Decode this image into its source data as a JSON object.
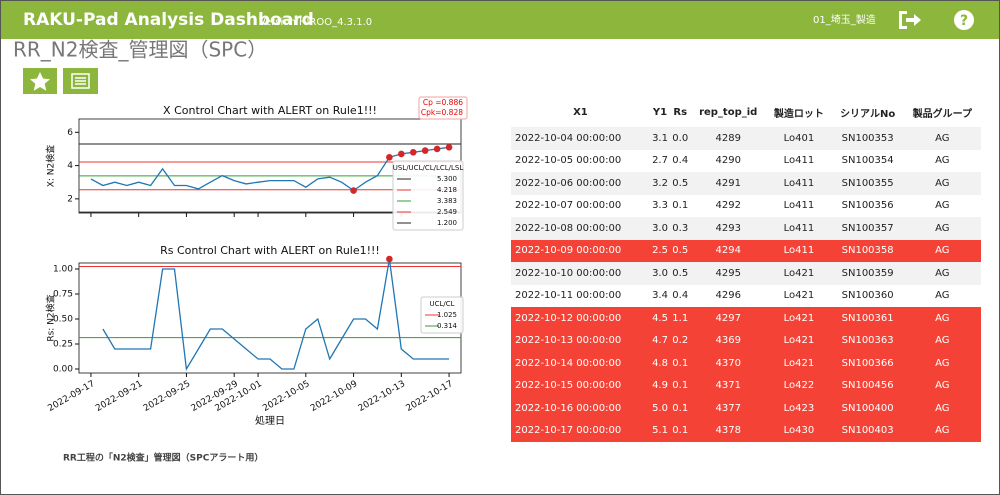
{
  "header": {
    "title": "RAKU-Pad Analysis Dashboard",
    "version": "Version HIROO_4.3.1.0",
    "site": "01_埼玉_製造"
  },
  "page_title": "RR_N2検査_管理図（SPC）",
  "caption": "RR工程の「N2検査」管理図（SPCアラート用）",
  "chart_data": [
    {
      "type": "line",
      "title": "X Control Chart with ALERT on Rule1!!!",
      "ylabel": "X: N2検査",
      "color": "#1f77b4",
      "alert_color": "#d62728",
      "x": [
        "2022-09-17",
        "2022-09-18",
        "2022-09-19",
        "2022-09-20",
        "2022-09-21",
        "2022-09-22",
        "2022-09-23",
        "2022-09-24",
        "2022-09-25",
        "2022-09-26",
        "2022-09-27",
        "2022-09-28",
        "2022-09-29",
        "2022-09-30",
        "2022-10-01",
        "2022-10-02",
        "2022-10-03",
        "2022-10-04",
        "2022-10-05",
        "2022-10-06",
        "2022-10-07",
        "2022-10-08",
        "2022-10-09",
        "2022-10-10",
        "2022-10-11",
        "2022-10-12",
        "2022-10-13",
        "2022-10-14",
        "2022-10-15",
        "2022-10-16",
        "2022-10-17"
      ],
      "values": [
        3.2,
        2.8,
        3.0,
        2.8,
        3.0,
        2.8,
        3.8,
        2.8,
        2.8,
        2.6,
        3.0,
        3.4,
        3.1,
        2.9,
        3.0,
        3.1,
        3.1,
        3.1,
        2.7,
        3.2,
        3.3,
        3.0,
        2.5,
        3.0,
        3.4,
        4.5,
        4.7,
        4.8,
        4.9,
        5.0,
        5.1
      ],
      "xlim": [
        "2022-09-16",
        "2022-10-18"
      ],
      "ylim": [
        1.15,
        6.8
      ],
      "yticks": [
        2,
        4,
        6
      ],
      "legend_title": "USL/UCL/CL/LCL/LSL",
      "limits": [
        {
          "value": 5.3,
          "label": "5.300",
          "color": "#222222"
        },
        {
          "value": 4.218,
          "label": "4.218",
          "color": "#ee3333"
        },
        {
          "value": 3.383,
          "label": "3.383",
          "color": "#2ca02c"
        },
        {
          "value": 2.549,
          "label": "2.549",
          "color": "#ee3333"
        },
        {
          "value": 1.2,
          "label": "1.200",
          "color": "#222222"
        }
      ],
      "annotations": [
        "Cp =0.886",
        "Cpk=0.828"
      ]
    },
    {
      "type": "line",
      "title": "Rs Control Chart with ALERT on Rule1!!!",
      "ylabel": "Rs: N2検査",
      "xlabel": "処理日",
      "color": "#1f77b4",
      "alert_color": "#d62728",
      "x": [
        "2022-09-17",
        "2022-09-18",
        "2022-09-19",
        "2022-09-20",
        "2022-09-21",
        "2022-09-22",
        "2022-09-23",
        "2022-09-24",
        "2022-09-25",
        "2022-09-26",
        "2022-09-27",
        "2022-09-28",
        "2022-09-29",
        "2022-09-30",
        "2022-10-01",
        "2022-10-02",
        "2022-10-03",
        "2022-10-04",
        "2022-10-05",
        "2022-10-06",
        "2022-10-07",
        "2022-10-08",
        "2022-10-09",
        "2022-10-10",
        "2022-10-11",
        "2022-10-12",
        "2022-10-13",
        "2022-10-14",
        "2022-10-15",
        "2022-10-16",
        "2022-10-17"
      ],
      "values": [
        null,
        0.4,
        0.2,
        0.2,
        0.2,
        0.2,
        1.0,
        1.0,
        0.0,
        0.2,
        0.4,
        0.4,
        0.3,
        0.2,
        0.1,
        0.1,
        0.0,
        0.0,
        0.4,
        0.5,
        0.1,
        0.3,
        0.5,
        0.5,
        0.4,
        1.1,
        0.2,
        0.1,
        0.1,
        0.1,
        0.1
      ],
      "xlim": [
        "2022-09-16",
        "2022-10-18"
      ],
      "ylim": [
        -0.04,
        1.06
      ],
      "yticks": [
        {
          "value": 0,
          "label": "0.00"
        },
        {
          "value": 0.25,
          "label": "0.25"
        },
        {
          "value": 0.5,
          "label": "0.50"
        },
        {
          "value": 0.75,
          "label": "0.75"
        },
        {
          "value": 1,
          "label": "1.00"
        }
      ],
      "xticks": [
        "2022-09-17",
        "2022-09-21",
        "2022-09-25",
        "2022-09-29",
        "2022-10-01",
        "2022-10-05",
        "2022-10-09",
        "2022-10-13",
        "2022-10-17"
      ],
      "legend_title": "UCL/CL",
      "limits": [
        {
          "value": 1.025,
          "label": "1.025",
          "color": "#ee3333"
        },
        {
          "value": 0.314,
          "label": "0.314",
          "color": "#2ca02c"
        }
      ]
    }
  ],
  "table": {
    "columns": [
      "X1",
      "Y1",
      "Rs",
      "rep_top_id",
      "製造ロット",
      "シリアルNo",
      "製品グループ"
    ],
    "rows": [
      [
        "2022-10-04 00:00:00",
        "3.1",
        "0.0",
        "4289",
        "Lo401",
        "SN100353",
        "AG"
      ],
      [
        "2022-10-05 00:00:00",
        "2.7",
        "0.4",
        "4290",
        "Lo411",
        "SN100354",
        "AG"
      ],
      [
        "2022-10-06 00:00:00",
        "3.2",
        "0.5",
        "4291",
        "Lo411",
        "SN100355",
        "AG"
      ],
      [
        "2022-10-07 00:00:00",
        "3.3",
        "0.1",
        "4292",
        "Lo411",
        "SN100356",
        "AG"
      ],
      [
        "2022-10-08 00:00:00",
        "3.0",
        "0.3",
        "4293",
        "Lo411",
        "SN100357",
        "AG"
      ],
      [
        "2022-10-09 00:00:00",
        "2.5",
        "0.5",
        "4294",
        "Lo411",
        "SN100358",
        "AG"
      ],
      [
        "2022-10-10 00:00:00",
        "3.0",
        "0.5",
        "4295",
        "Lo421",
        "SN100359",
        "AG"
      ],
      [
        "2022-10-11 00:00:00",
        "3.4",
        "0.4",
        "4296",
        "Lo421",
        "SN100360",
        "AG"
      ],
      [
        "2022-10-12 00:00:00",
        "4.5",
        "1.1",
        "4297",
        "Lo421",
        "SN100361",
        "AG"
      ],
      [
        "2022-10-13 00:00:00",
        "4.7",
        "0.2",
        "4369",
        "Lo421",
        "SN100363",
        "AG"
      ],
      [
        "2022-10-14 00:00:00",
        "4.8",
        "0.1",
        "4370",
        "Lo421",
        "SN100366",
        "AG"
      ],
      [
        "2022-10-15 00:00:00",
        "4.9",
        "0.1",
        "4371",
        "Lo422",
        "SN100456",
        "AG"
      ],
      [
        "2022-10-16 00:00:00",
        "5.0",
        "0.1",
        "4377",
        "Lo423",
        "SN100400",
        "AG"
      ],
      [
        "2022-10-17 00:00:00",
        "5.1",
        "0.1",
        "4378",
        "Lo430",
        "SN100403",
        "AG"
      ]
    ],
    "highlighted_rows": [
      5,
      8,
      9,
      10,
      11,
      12,
      13
    ],
    "highlight_color": "#f44336"
  }
}
